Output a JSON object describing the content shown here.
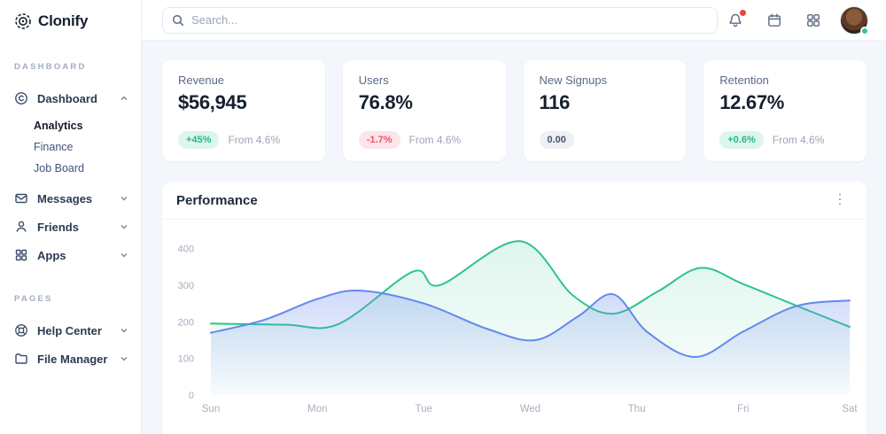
{
  "brand": {
    "name": "Clonify"
  },
  "topbar": {
    "search_placeholder": "Search...",
    "icons": [
      "search-icon",
      "bell-icon",
      "calendar-icon",
      "apps-grid-icon"
    ],
    "avatar": {
      "status": "online"
    }
  },
  "icons": {
    "kebab": "⋮"
  },
  "sidebar": {
    "sections": [
      {
        "label": "DASHBOARD",
        "items": [
          {
            "label": "Dashboard",
            "icon": "dashboard-icon",
            "expanded": true,
            "children": [
              {
                "label": "Analytics",
                "active": true
              },
              {
                "label": "Finance",
                "active": false
              },
              {
                "label": "Job Board",
                "active": false
              }
            ]
          },
          {
            "label": "Messages",
            "icon": "messages-icon",
            "expanded": false
          },
          {
            "label": "Friends",
            "icon": "friends-icon",
            "expanded": false
          },
          {
            "label": "Apps",
            "icon": "apps-icon",
            "expanded": false
          }
        ]
      },
      {
        "label": "PAGES",
        "items": [
          {
            "label": "Help Center",
            "icon": "help-center-icon",
            "expanded": false
          },
          {
            "label": "File Manager",
            "icon": "folder-icon",
            "expanded": false
          }
        ]
      }
    ]
  },
  "stats": [
    {
      "label": "Revenue",
      "value": "$56,945",
      "badge": "+45%",
      "badge_type": "positive",
      "note": "From 4.6%"
    },
    {
      "label": "Users",
      "value": "76.8%",
      "badge": "-1.7%",
      "badge_type": "negative",
      "note": "From 4.6%"
    },
    {
      "label": "New Signups",
      "value": "116",
      "badge": "0.00",
      "badge_type": "neutral",
      "note": ""
    },
    {
      "label": "Retention",
      "value": "12.67%",
      "badge": "+0.6%",
      "badge_type": "positive",
      "note": "From 4.6%"
    }
  ],
  "performance": {
    "title": "Performance"
  },
  "colors": {
    "accent_green": "#2ec48c",
    "accent_blue": "#6488ee",
    "positive_text": "#27b889",
    "positive_bg": "#dcf6ec",
    "negative_text": "#f0536d",
    "negative_bg": "#fde4e9",
    "neutral_text": "#4a5568",
    "neutral_bg": "#edf0f4",
    "notification_dot": "#ef4444",
    "status_online": "#2ecc8e",
    "muted_text": "#9aa5b5",
    "card_bg": "#ffffff",
    "page_bg": "#f3f6fa"
  },
  "chart_data": {
    "type": "area",
    "title": "Performance",
    "x_categories": [
      "Sun",
      "Mon",
      "Tue",
      "Wed",
      "Thu",
      "Fri",
      "Sat"
    ],
    "x_unit_range": [
      0,
      6
    ],
    "ylim": [
      0,
      440
    ],
    "yticks": [
      0,
      100,
      200,
      300,
      400
    ],
    "grid": false,
    "legend": "none",
    "series": [
      {
        "name": "series-green",
        "color": "#2ec48c",
        "fill_opacity_top": 0.16,
        "points": [
          [
            0,
            195
          ],
          [
            0.7,
            192
          ],
          [
            1.2,
            194
          ],
          [
            1.9,
            337
          ],
          [
            2.15,
            300
          ],
          [
            2.9,
            420
          ],
          [
            3.4,
            272
          ],
          [
            3.78,
            222
          ],
          [
            4.2,
            283
          ],
          [
            4.6,
            347
          ],
          [
            5.0,
            303
          ],
          [
            5.6,
            232
          ],
          [
            6.0,
            186
          ]
        ]
      },
      {
        "name": "series-blue",
        "color": "#6488ee",
        "fill_opacity_top": 0.3,
        "points": [
          [
            0,
            170
          ],
          [
            0.5,
            205
          ],
          [
            1.0,
            262
          ],
          [
            1.4,
            285
          ],
          [
            2.0,
            250
          ],
          [
            2.6,
            180
          ],
          [
            3.05,
            150
          ],
          [
            3.45,
            215
          ],
          [
            3.78,
            275
          ],
          [
            4.1,
            172
          ],
          [
            4.55,
            104
          ],
          [
            5.0,
            173
          ],
          [
            5.5,
            243
          ],
          [
            6.0,
            258
          ]
        ]
      }
    ]
  }
}
